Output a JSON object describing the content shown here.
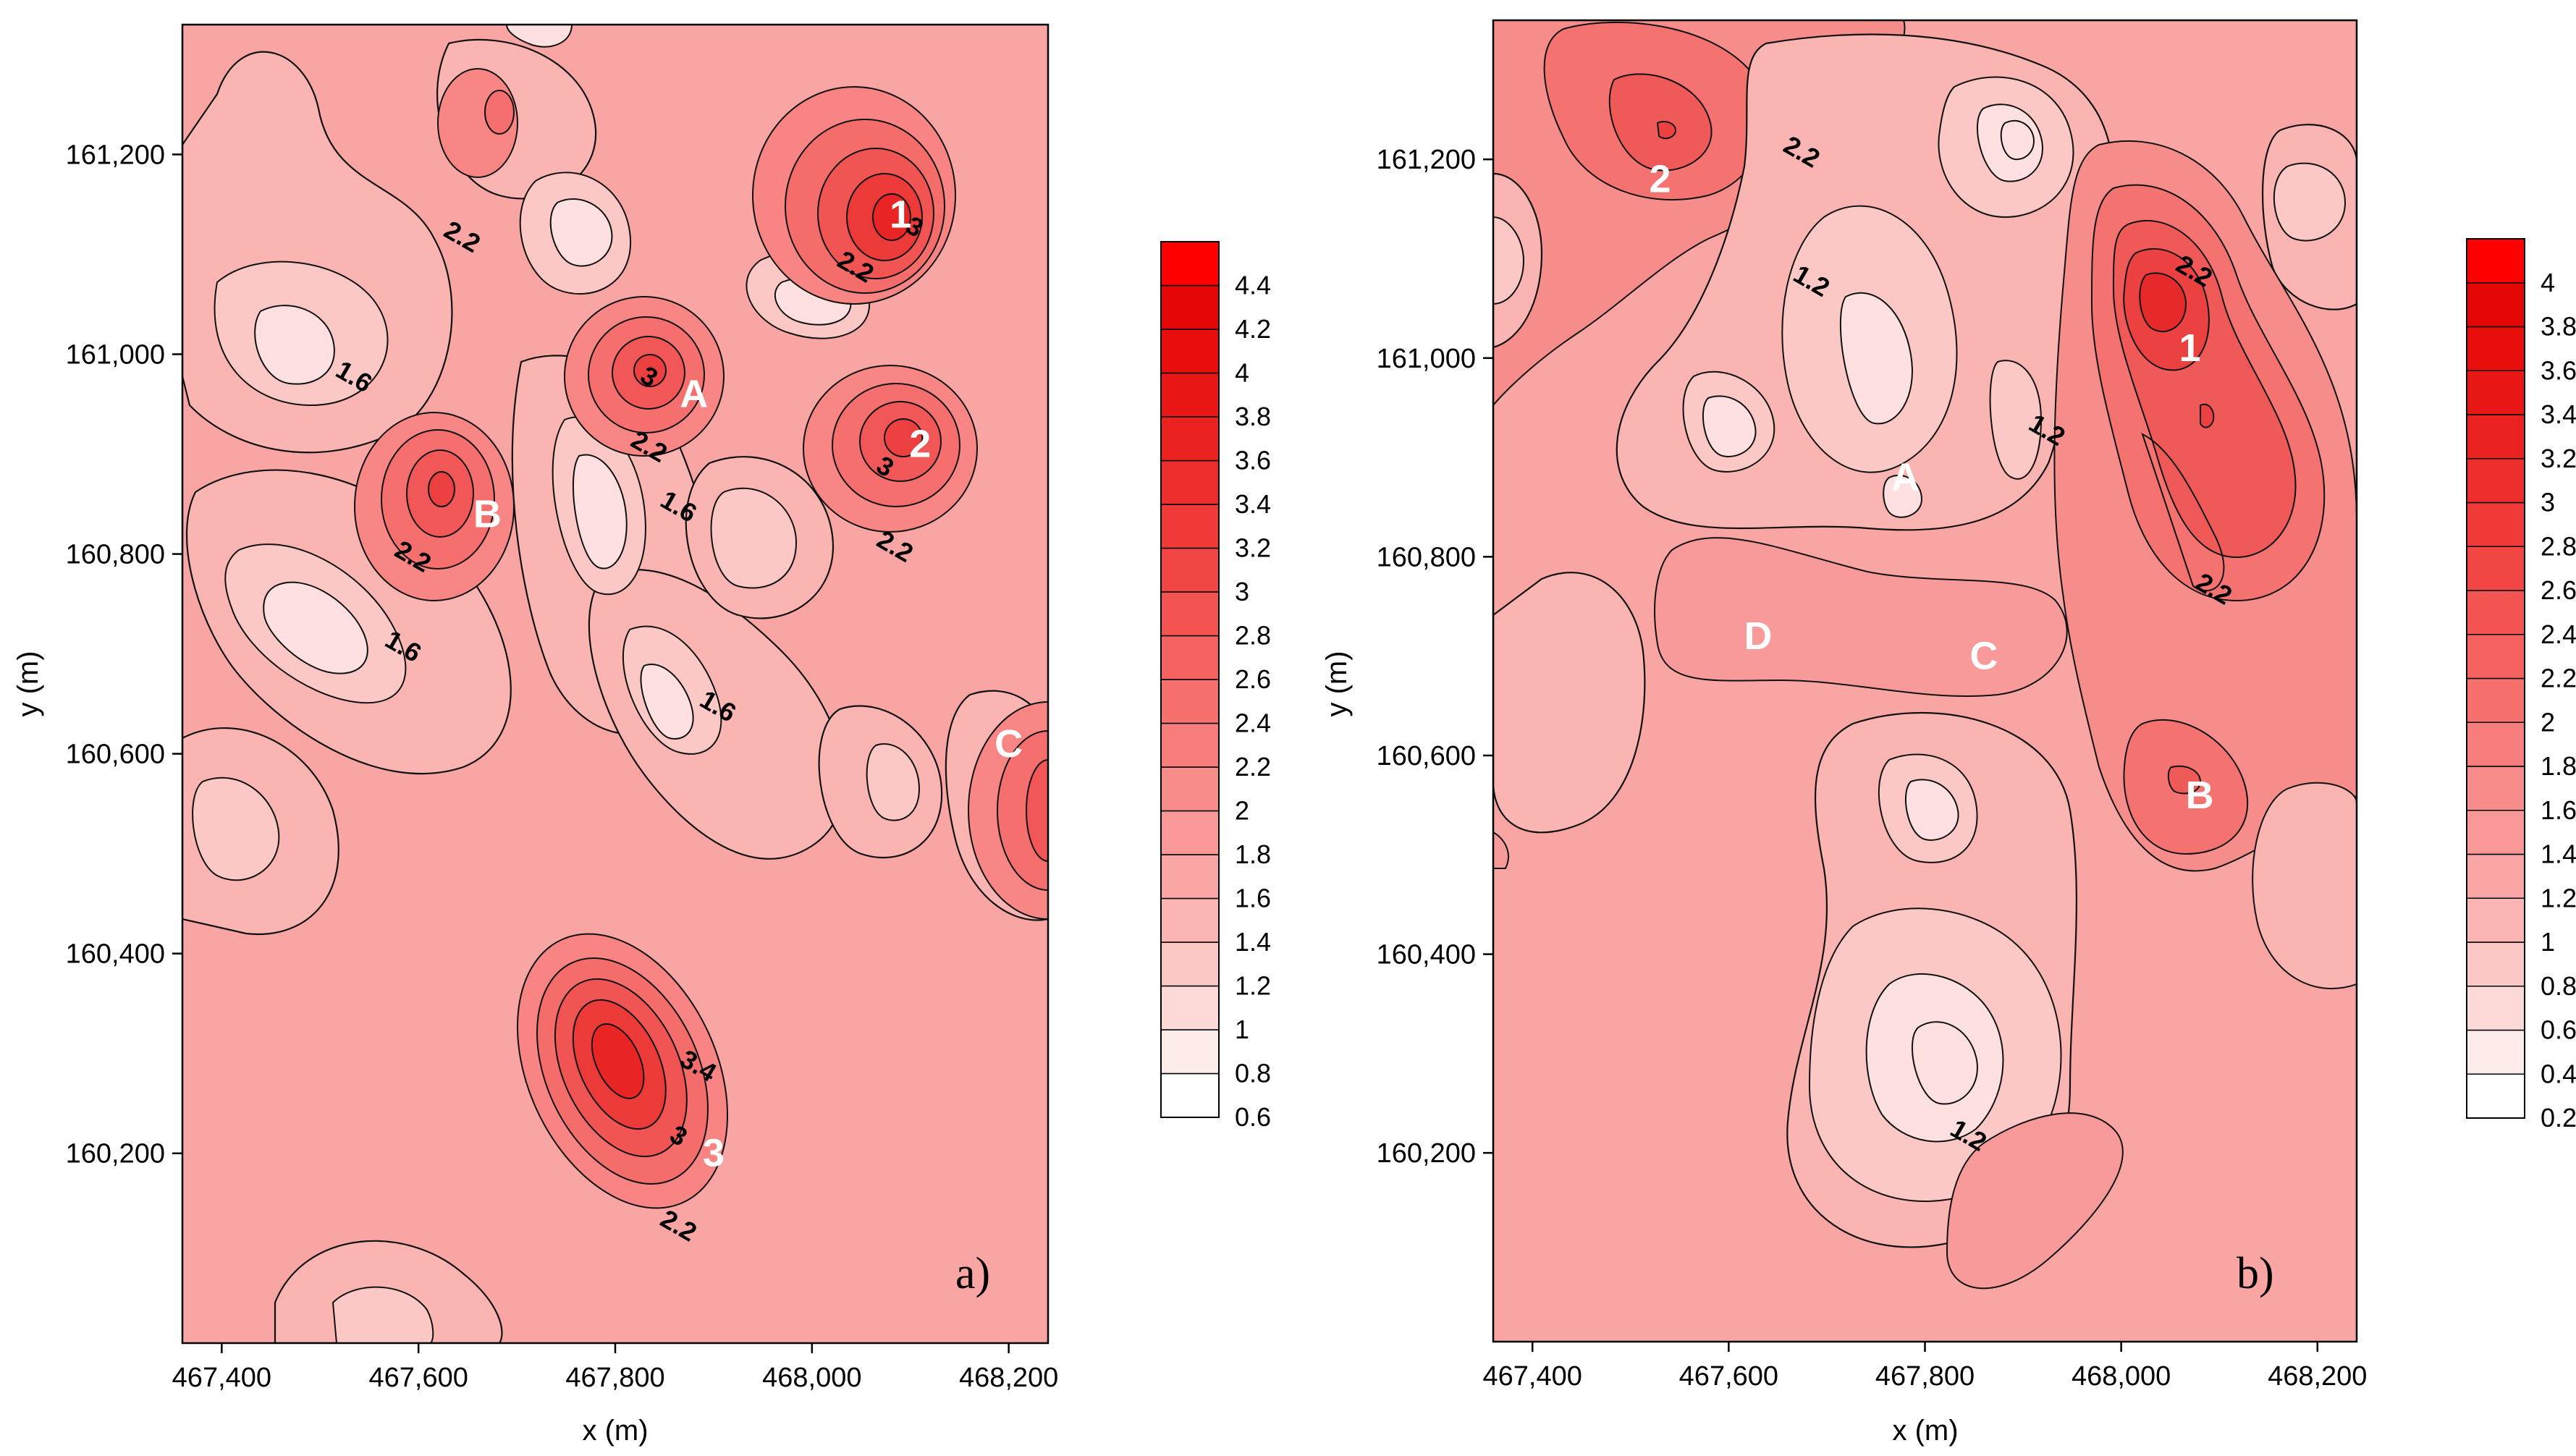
{
  "chart_data": [
    {
      "type": "contour",
      "panel_label": "a)",
      "xlabel": "x (m)",
      "ylabel": "y (m)",
      "xlim": [
        467360,
        468240
      ],
      "ylim": [
        160010,
        161330
      ],
      "x_ticks": [
        467400,
        467600,
        467800,
        468000,
        468200
      ],
      "x_tick_labels": [
        "467,400",
        "467,600",
        "467,800",
        "468,000",
        "468,200"
      ],
      "y_ticks": [
        160200,
        160400,
        160600,
        160800,
        161000,
        161200
      ],
      "y_tick_labels": [
        "160,200",
        "160,400",
        "160,600",
        "160,800",
        "161,000",
        "161,200"
      ],
      "colorbar_levels": [
        "0.6",
        "0.8",
        "1",
        "1.2",
        "1.4",
        "1.6",
        "1.8",
        "2",
        "2.2",
        "2.4",
        "2.6",
        "2.8",
        "3",
        "3.2",
        "3.4",
        "3.6",
        "3.8",
        "4",
        "4.2",
        "4.4"
      ],
      "colorbar_range": [
        0.6,
        4.5
      ],
      "contour_labels": [
        {
          "text": "2.2",
          "x": 467640,
          "y": 161110
        },
        {
          "text": "1.6",
          "x": 467530,
          "y": 160970
        },
        {
          "text": "3",
          "x": 468100,
          "y": 161120
        },
        {
          "text": "2.2",
          "x": 468040,
          "y": 161080
        },
        {
          "text": "3",
          "x": 467830,
          "y": 160970
        },
        {
          "text": "2.2",
          "x": 467830,
          "y": 160900
        },
        {
          "text": "1.6",
          "x": 467860,
          "y": 160840
        },
        {
          "text": "3",
          "x": 468070,
          "y": 160880
        },
        {
          "text": "2.2",
          "x": 468080,
          "y": 160800
        },
        {
          "text": "2.2",
          "x": 467590,
          "y": 160790
        },
        {
          "text": "1.6",
          "x": 467580,
          "y": 160700
        },
        {
          "text": "1.6",
          "x": 467900,
          "y": 160640
        },
        {
          "text": "3.4",
          "x": 467880,
          "y": 160280
        },
        {
          "text": "3",
          "x": 467860,
          "y": 160210
        },
        {
          "text": "2.2",
          "x": 467860,
          "y": 160120
        }
      ],
      "markers": [
        {
          "text": "1",
          "x": 468090,
          "y": 161140
        },
        {
          "text": "A",
          "x": 467880,
          "y": 160960
        },
        {
          "text": "2",
          "x": 468110,
          "y": 160910
        },
        {
          "text": "B",
          "x": 467670,
          "y": 160840
        },
        {
          "text": "C",
          "x": 468200,
          "y": 160610
        },
        {
          "text": "3",
          "x": 467900,
          "y": 160200
        }
      ]
    },
    {
      "type": "contour",
      "panel_label": "b)",
      "xlabel": "x (m)",
      "ylabel": "y (m)",
      "xlim": [
        467360,
        468240
      ],
      "ylim": [
        160010,
        161340
      ],
      "x_ticks": [
        467400,
        467600,
        467800,
        468000,
        468200
      ],
      "x_tick_labels": [
        "467,400",
        "467,600",
        "467,800",
        "468,000",
        "468,200"
      ],
      "y_ticks": [
        160200,
        160400,
        160600,
        160800,
        161000,
        161200
      ],
      "y_tick_labels": [
        "160,200",
        "160,400",
        "160,600",
        "160,800",
        "161,000",
        "161,200"
      ],
      "colorbar_levels": [
        "0.2",
        "0.4",
        "0.6",
        "0.8",
        "1",
        "1.2",
        "1.4",
        "1.6",
        "1.8",
        "2",
        "2.2",
        "2.4",
        "2.6",
        "2.8",
        "3",
        "3.2",
        "3.4",
        "3.6",
        "3.8",
        "4"
      ],
      "colorbar_range": [
        0.2,
        4.2
      ],
      "contour_labels": [
        {
          "text": "2.2",
          "x": 467670,
          "y": 161200
        },
        {
          "text": "1.2",
          "x": 467680,
          "y": 161070
        },
        {
          "text": "2.2",
          "x": 468070,
          "y": 161080
        },
        {
          "text": "1.2",
          "x": 467920,
          "y": 160920
        },
        {
          "text": "2.2",
          "x": 468090,
          "y": 160760
        },
        {
          "text": "1.2",
          "x": 467840,
          "y": 160210
        }
      ],
      "markers": [
        {
          "text": "2",
          "x": 467530,
          "y": 161180
        },
        {
          "text": "1",
          "x": 468070,
          "y": 161010
        },
        {
          "text": "A",
          "x": 467780,
          "y": 160880
        },
        {
          "text": "D",
          "x": 467630,
          "y": 160720
        },
        {
          "text": "C",
          "x": 467860,
          "y": 160700
        },
        {
          "text": "B",
          "x": 468080,
          "y": 160560
        }
      ]
    }
  ]
}
